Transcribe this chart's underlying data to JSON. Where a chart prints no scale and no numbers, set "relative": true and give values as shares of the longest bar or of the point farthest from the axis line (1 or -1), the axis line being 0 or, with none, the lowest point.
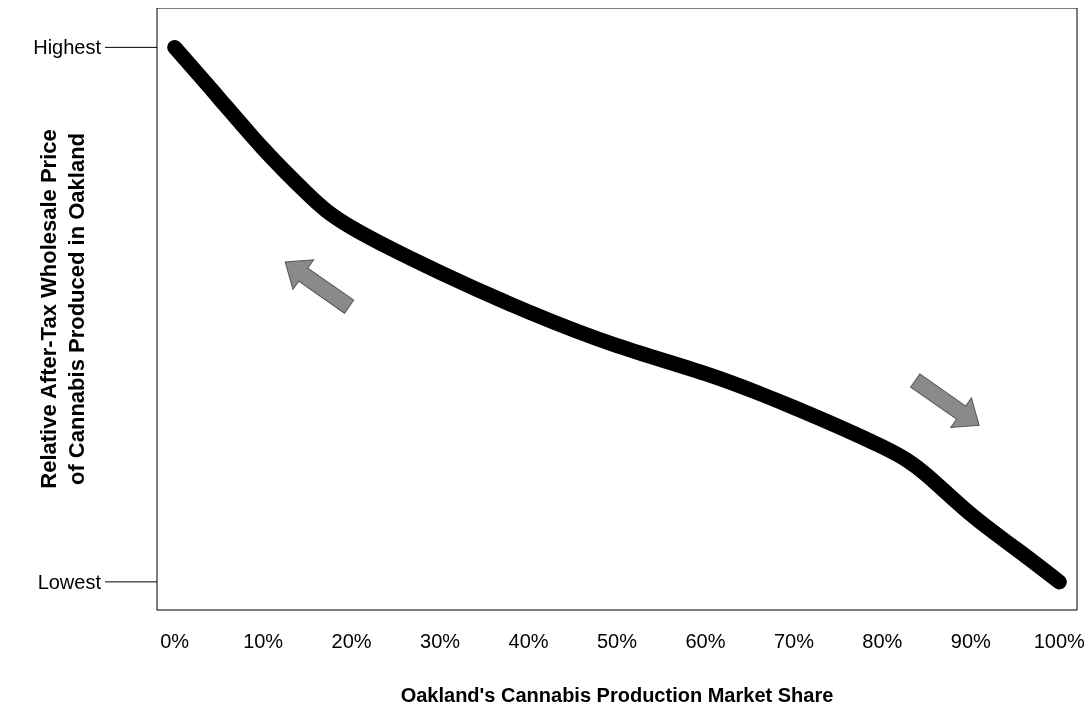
{
  "chart_data": {
    "type": "line",
    "xlabel": "Oakland's Cannabis Production Market Share",
    "ylabel": "Relative After-Tax Wholesale Price of Cannabis Produced in Oakland",
    "x": [
      0,
      5,
      10,
      15,
      20,
      30,
      40,
      50,
      60,
      70,
      80,
      85,
      90,
      95,
      100
    ],
    "series": [
      {
        "color": "#000000",
        "values": [
          1,
          0.91,
          0.82,
          0.74,
          0.68,
          0.6,
          0.53,
          0.47,
          0.42,
          0.36,
          0.29,
          0.24,
          0.17,
          0.11,
          0.05
        ]
      }
    ],
    "relative": true,
    "annotations": [
      "Highest",
      "Lowest"
    ],
    "xlim": [
      -2,
      102
    ],
    "xticks": [
      {
        "value": 0,
        "label": "0%"
      },
      {
        "value": 10,
        "label": "10%"
      },
      {
        "value": 20,
        "label": "20%"
      },
      {
        "value": 30,
        "label": "30%"
      },
      {
        "value": 40,
        "label": "40%"
      },
      {
        "value": 50,
        "label": "50%"
      },
      {
        "value": 60,
        "label": "60%"
      },
      {
        "value": 70,
        "label": "70%"
      },
      {
        "value": 80,
        "label": "80%"
      },
      {
        "value": 90,
        "label": "90%"
      },
      {
        "value": 100,
        "label": "100%"
      }
    ],
    "grid": false,
    "legend": false,
    "marker": "none",
    "line_style": "solid"
  }
}
